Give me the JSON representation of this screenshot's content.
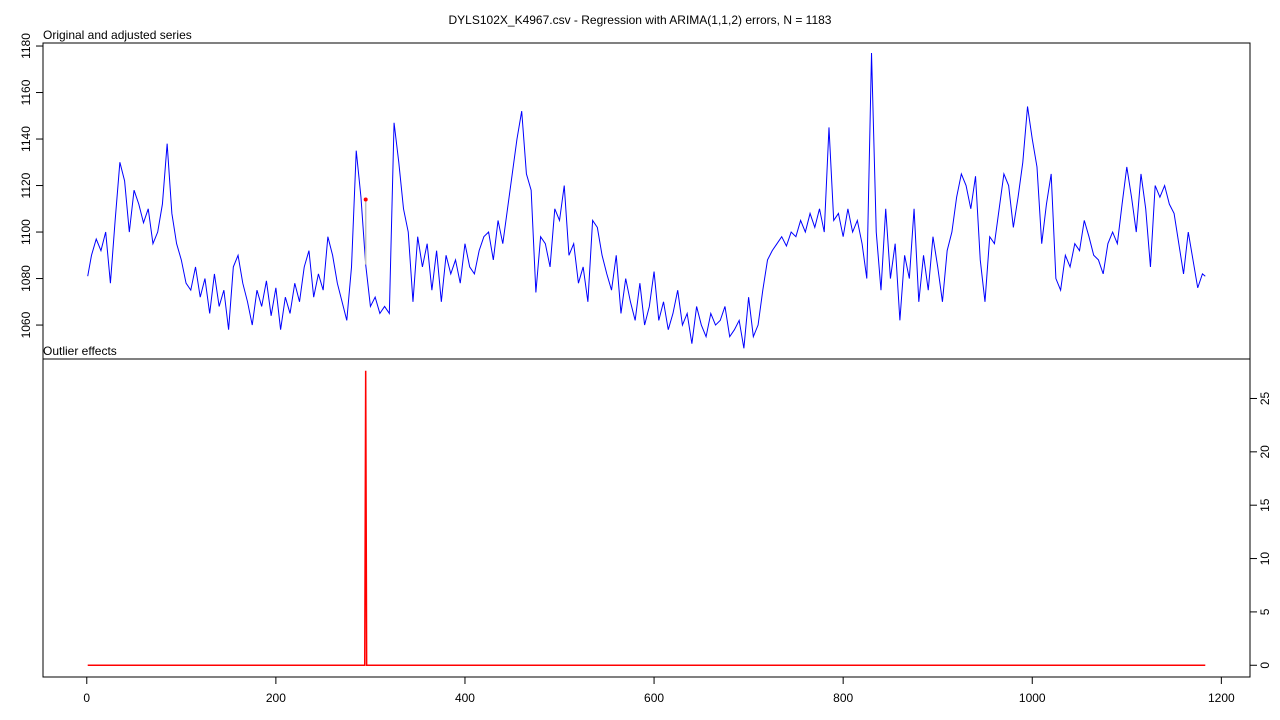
{
  "title": "DYLS102X_K4967.csv - Regression with ARIMA(1,1,2) errors, N = 1183",
  "chart_data": [
    {
      "type": "line",
      "title": "Original and adjusted series",
      "xlim": [
        -46.3,
        1230.3
      ],
      "ylim": [
        1045.4,
        1181.3
      ],
      "yticks": [
        1060,
        1080,
        1100,
        1120,
        1140,
        1160,
        1180
      ],
      "series": [
        {
          "color": "#0000ff",
          "x": [
            1,
            5,
            10,
            15,
            20,
            25,
            30,
            35,
            40,
            45,
            50,
            55,
            60,
            65,
            70,
            75,
            80,
            85,
            90,
            95,
            100,
            105,
            110,
            115,
            120,
            125,
            130,
            135,
            140,
            145,
            150,
            155,
            160,
            165,
            170,
            175,
            180,
            185,
            190,
            195,
            200,
            205,
            210,
            215,
            220,
            225,
            230,
            235,
            240,
            245,
            250,
            255,
            260,
            265,
            270,
            275,
            280,
            285,
            290,
            295,
            300,
            305,
            310,
            315,
            320,
            325,
            330,
            335,
            340,
            345,
            350,
            355,
            360,
            365,
            370,
            375,
            380,
            385,
            390,
            395,
            400,
            405,
            410,
            415,
            420,
            425,
            430,
            435,
            440,
            445,
            450,
            455,
            460,
            465,
            470,
            475,
            480,
            485,
            490,
            495,
            500,
            505,
            510,
            515,
            520,
            525,
            530,
            535,
            540,
            545,
            550,
            555,
            560,
            565,
            570,
            575,
            580,
            585,
            590,
            595,
            600,
            605,
            610,
            615,
            620,
            625,
            630,
            635,
            640,
            645,
            650,
            655,
            660,
            665,
            670,
            675,
            680,
            685,
            690,
            695,
            700,
            705,
            710,
            715,
            720,
            725,
            730,
            735,
            740,
            745,
            750,
            755,
            760,
            765,
            770,
            775,
            780,
            785,
            790,
            795,
            800,
            805,
            810,
            815,
            820,
            825,
            830,
            835,
            840,
            845,
            850,
            855,
            860,
            865,
            870,
            875,
            880,
            885,
            890,
            895,
            900,
            905,
            910,
            915,
            920,
            925,
            930,
            935,
            940,
            945,
            950,
            955,
            960,
            965,
            970,
            975,
            980,
            985,
            990,
            995,
            1000,
            1005,
            1010,
            1015,
            1020,
            1025,
            1030,
            1035,
            1040,
            1045,
            1050,
            1055,
            1060,
            1065,
            1070,
            1075,
            1080,
            1085,
            1090,
            1095,
            1100,
            1105,
            1110,
            1115,
            1120,
            1125,
            1130,
            1135,
            1140,
            1145,
            1150,
            1155,
            1160,
            1165,
            1170,
            1175,
            1180,
            1183
          ],
          "values": [
            1081,
            1090,
            1097,
            1092,
            1100,
            1078,
            1105,
            1130,
            1122,
            1100,
            1118,
            1112,
            1104,
            1110,
            1095,
            1100,
            1112,
            1138,
            1108,
            1095,
            1088,
            1078,
            1075,
            1085,
            1072,
            1080,
            1065,
            1082,
            1068,
            1075,
            1058,
            1085,
            1090,
            1078,
            1070,
            1060,
            1075,
            1068,
            1079,
            1064,
            1076,
            1058,
            1072,
            1065,
            1078,
            1070,
            1085,
            1092,
            1072,
            1082,
            1075,
            1098,
            1090,
            1078,
            1070,
            1062,
            1085,
            1135,
            1115,
            1086,
            1068,
            1072,
            1065,
            1068,
            1065,
            1147,
            1130,
            1110,
            1100,
            1070,
            1098,
            1085,
            1095,
            1075,
            1092,
            1070,
            1090,
            1082,
            1088,
            1078,
            1095,
            1085,
            1082,
            1092,
            1098,
            1100,
            1088,
            1105,
            1095,
            1110,
            1125,
            1140,
            1152,
            1125,
            1118,
            1074,
            1098,
            1095,
            1085,
            1110,
            1105,
            1120,
            1090,
            1095,
            1078,
            1085,
            1070,
            1105,
            1102,
            1090,
            1082,
            1075,
            1090,
            1065,
            1080,
            1070,
            1062,
            1078,
            1060,
            1068,
            1083,
            1062,
            1070,
            1058,
            1065,
            1075,
            1060,
            1065,
            1052,
            1068,
            1060,
            1055,
            1065,
            1060,
            1062,
            1068,
            1055,
            1058,
            1062,
            1050,
            1072,
            1055,
            1060,
            1075,
            1088,
            1092,
            1095,
            1098,
            1094,
            1100,
            1098,
            1105,
            1100,
            1108,
            1102,
            1110,
            1100,
            1145,
            1105,
            1108,
            1098,
            1110,
            1100,
            1105,
            1095,
            1080,
            1177,
            1100,
            1075,
            1110,
            1080,
            1095,
            1062,
            1090,
            1080,
            1110,
            1070,
            1090,
            1075,
            1098,
            1085,
            1070,
            1092,
            1100,
            1115,
            1125,
            1120,
            1110,
            1124,
            1088,
            1070,
            1098,
            1095,
            1110,
            1125,
            1120,
            1102,
            1115,
            1130,
            1154,
            1140,
            1128,
            1095,
            1112,
            1125,
            1080,
            1075,
            1090,
            1085,
            1095,
            1092,
            1105,
            1098,
            1090,
            1088,
            1082,
            1095,
            1100,
            1095,
            1112,
            1128,
            1115,
            1100,
            1125,
            1110,
            1085,
            1120,
            1115,
            1120,
            1112,
            1108,
            1095,
            1082,
            1100,
            1088,
            1076,
            1082,
            1081
          ]
        }
      ],
      "outliers": {
        "x": [
          295
        ],
        "original": [
          1114
        ],
        "color": "#ff0000",
        "link_color": "#c0c0c0"
      }
    },
    {
      "type": "line",
      "title": "Outlier effects",
      "xlim": [
        -46.3,
        1230.3
      ],
      "ylim": [
        -1.1,
        28.7
      ],
      "xticks": [
        0,
        200,
        400,
        600,
        800,
        1000,
        1200
      ],
      "yticks": [
        0,
        5,
        10,
        15,
        20,
        25
      ],
      "series": [
        {
          "color": "#ff0000",
          "x": [
            1,
            294,
            295,
            296,
            1183
          ],
          "values": [
            0,
            0,
            27.6,
            0,
            0
          ]
        }
      ]
    }
  ]
}
